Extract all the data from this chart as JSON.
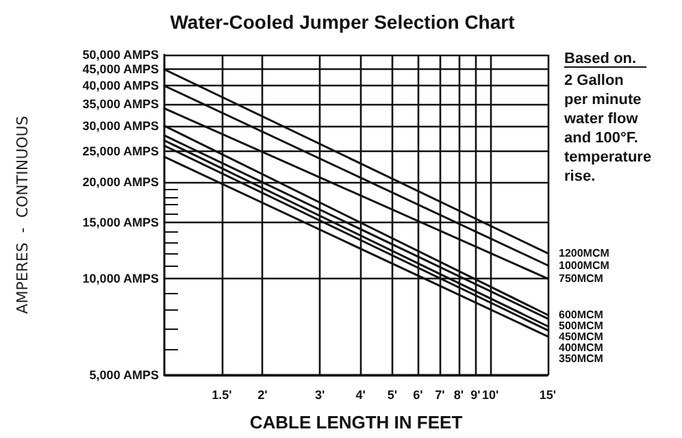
{
  "chart_data": {
    "type": "line",
    "title": "Water-Cooled Jumper Selection Chart",
    "xlabel": "CABLE LENGTH IN FEET",
    "ylabel": "AMPERES  -  CONTINUOUS",
    "annotations": [
      "Based on.",
      "2 Gallon per minute water flow and 100°F. temperature rise."
    ],
    "log": "xy",
    "grid": true,
    "legend": false,
    "marker": "none",
    "line_style": "solid",
    "xlim": [
      1,
      15
    ],
    "xticks": [
      {
        "value": 1.5,
        "label": "1.5'"
      },
      {
        "value": 2,
        "label": "2'"
      },
      {
        "value": 3,
        "label": "3'"
      },
      {
        "value": 4,
        "label": "4'"
      },
      {
        "value": 5,
        "label": "5'"
      },
      {
        "value": 6,
        "label": "6'"
      },
      {
        "value": 7,
        "label": "7'"
      },
      {
        "value": 8,
        "label": "8'"
      },
      {
        "value": 9,
        "label": "9'"
      },
      {
        "value": 10,
        "label": "10'"
      },
      {
        "value": 15,
        "label": "15'"
      }
    ],
    "ylim": [
      5000,
      50000
    ],
    "yticks": [
      {
        "value": 5000,
        "label": "5,000 AMPS"
      },
      {
        "value": 6000,
        "label": null
      },
      {
        "value": 7000,
        "label": null
      },
      {
        "value": 8000,
        "label": null
      },
      {
        "value": 9000,
        "label": null
      },
      {
        "value": 10000,
        "label": "10,000 AMPS"
      },
      {
        "value": 11000,
        "label": null
      },
      {
        "value": 12000,
        "label": null
      },
      {
        "value": 13000,
        "label": null
      },
      {
        "value": 14000,
        "label": null
      },
      {
        "value": 15000,
        "label": "15,000 AMPS"
      },
      {
        "value": 16000,
        "label": null
      },
      {
        "value": 17000,
        "label": null
      },
      {
        "value": 18000,
        "label": null
      },
      {
        "value": 19000,
        "label": null
      },
      {
        "value": 20000,
        "label": "20,000 AMPS"
      },
      {
        "value": 25000,
        "label": "25,000 AMPS"
      },
      {
        "value": 30000,
        "label": "30,000 AMPS"
      },
      {
        "value": 35000,
        "label": "35,000 AMPS"
      },
      {
        "value": 40000,
        "label": "40,000 AMPS"
      },
      {
        "value": 45000,
        "label": "45,000 AMPS"
      },
      {
        "value": 50000,
        "label": "50,000 AMPS"
      }
    ],
    "x": [
      1,
      15
    ],
    "series": [
      {
        "name": "1200MCM",
        "color": "#111111",
        "values": [
          45000,
          12000
        ]
      },
      {
        "name": "1000MCM",
        "color": "#111111",
        "values": [
          40000,
          11000
        ]
      },
      {
        "name": "750MCM",
        "color": "#111111",
        "values": [
          34000,
          10000
        ]
      },
      {
        "name": "600MCM",
        "color": "#111111",
        "values": [
          30000,
          7700
        ]
      },
      {
        "name": "500MCM",
        "color": "#111111",
        "values": [
          28000,
          7500
        ]
      },
      {
        "name": "450MCM",
        "color": "#111111",
        "values": [
          27000,
          7100
        ]
      },
      {
        "name": "400MCM",
        "color": "#111111",
        "values": [
          26000,
          6900
        ]
      },
      {
        "name": "350MCM",
        "color": "#111111",
        "values": [
          24000,
          6600
        ]
      }
    ]
  }
}
